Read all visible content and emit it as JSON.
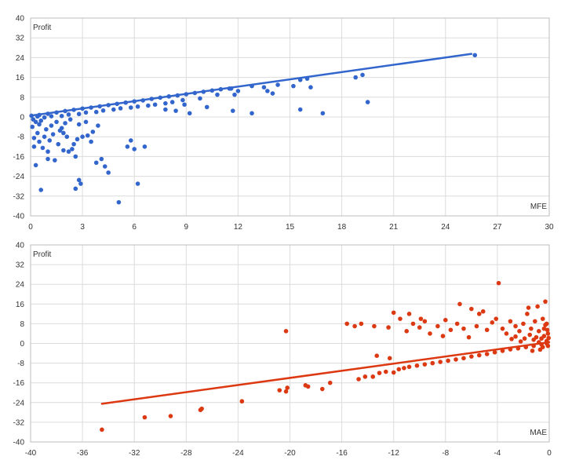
{
  "chart_data": [
    {
      "type": "scatter",
      "ylabel": "Profit",
      "xlabel": "MFE",
      "xlim": [
        0,
        30
      ],
      "ylim": [
        -40,
        40
      ],
      "x_ticks": [
        0,
        3,
        6,
        9,
        12,
        15,
        18,
        21,
        24,
        27,
        30
      ],
      "y_ticks": [
        40,
        32,
        24,
        16,
        8,
        0,
        -8,
        -16,
        -24,
        -32,
        -40
      ],
      "grid": true,
      "color": "#3366cc",
      "trendline": {
        "from": [
          0,
          0.5
        ],
        "to": [
          25.5,
          25.5
        ]
      },
      "points": [
        [
          0.3,
          -19.5
        ],
        [
          0.6,
          -29.5
        ],
        [
          1.0,
          -17
        ],
        [
          1.4,
          -17.5
        ],
        [
          2.6,
          -29
        ],
        [
          2.9,
          -27
        ],
        [
          2.8,
          -25.5
        ],
        [
          3.8,
          -18.5
        ],
        [
          4.1,
          -17
        ],
        [
          4.3,
          -20
        ],
        [
          4.5,
          -22.5
        ],
        [
          5.1,
          -34.5
        ],
        [
          5.6,
          -12
        ],
        [
          5.8,
          -9.5
        ],
        [
          6.0,
          -13
        ],
        [
          6.2,
          -27
        ],
        [
          6.6,
          -12
        ],
        [
          0.2,
          -12
        ],
        [
          0.5,
          -10
        ],
        [
          0.8,
          -8
        ],
        [
          1.1,
          -9.5
        ],
        [
          1.3,
          -7
        ],
        [
          1.6,
          -11
        ],
        [
          1.9,
          -6.5
        ],
        [
          2.2,
          -14
        ],
        [
          2.4,
          -13
        ],
        [
          2.5,
          -11
        ],
        [
          2.7,
          -9
        ],
        [
          3.0,
          -8
        ],
        [
          3.3,
          -7.5
        ],
        [
          3.6,
          -6
        ],
        [
          3.9,
          -3.5
        ],
        [
          2.0,
          -2.5
        ],
        [
          1.2,
          -3.5
        ],
        [
          0.9,
          -5
        ],
        [
          0.4,
          -6.5
        ],
        [
          0.1,
          -4
        ],
        [
          0.3,
          -2
        ],
        [
          0.6,
          -1.5
        ],
        [
          1.5,
          -2
        ],
        [
          1.8,
          -4.5
        ],
        [
          2.3,
          -1
        ],
        [
          2.8,
          -3
        ],
        [
          3.2,
          -2
        ],
        [
          0.2,
          -8.5
        ],
        [
          0.7,
          -12.5
        ],
        [
          1.0,
          -14
        ],
        [
          0.5,
          -3
        ],
        [
          0.15,
          -1
        ],
        [
          0.05,
          0.5
        ],
        [
          0.4,
          0.2
        ],
        [
          1.7,
          -5.5
        ],
        [
          2.1,
          -8
        ],
        [
          3.5,
          -10
        ],
        [
          2.6,
          -16
        ],
        [
          1.9,
          -13.5
        ],
        [
          0.5,
          0.8
        ],
        [
          1.0,
          1.3
        ],
        [
          1.5,
          1.8
        ],
        [
          2.0,
          2.4
        ],
        [
          2.5,
          2.9
        ],
        [
          3.0,
          3.4
        ],
        [
          3.5,
          3.8
        ],
        [
          4.0,
          4.3
        ],
        [
          4.5,
          4.8
        ],
        [
          5.0,
          5.3
        ],
        [
          5.5,
          5.8
        ],
        [
          6.0,
          6.3
        ],
        [
          6.5,
          6.7
        ],
        [
          7.0,
          7.3
        ],
        [
          7.5,
          7.8
        ],
        [
          8.0,
          8.3
        ],
        [
          8.5,
          8.7
        ],
        [
          9.0,
          9.2
        ],
        [
          9.5,
          9.7
        ],
        [
          10.0,
          10.2
        ],
        [
          10.5,
          10.7
        ],
        [
          11.0,
          11.2
        ],
        [
          11.5,
          11.5
        ],
        [
          1.2,
          0.3
        ],
        [
          2.2,
          1.0
        ],
        [
          3.2,
          1.8
        ],
        [
          4.2,
          2.6
        ],
        [
          5.2,
          3.5
        ],
        [
          6.2,
          4.2
        ],
        [
          7.2,
          5.0
        ],
        [
          8.2,
          6.0
        ],
        [
          0.8,
          -0.2
        ],
        [
          1.8,
          0.4
        ],
        [
          2.8,
          1.2
        ],
        [
          3.8,
          2.0
        ],
        [
          4.8,
          3.0
        ],
        [
          5.8,
          3.8
        ],
        [
          6.8,
          4.6
        ],
        [
          7.8,
          5.5
        ],
        [
          8.8,
          6.8
        ],
        [
          9.8,
          7.5
        ],
        [
          10.8,
          9.0
        ],
        [
          11.6,
          11.5
        ],
        [
          12.0,
          10.5
        ],
        [
          12.8,
          12.5
        ],
        [
          13.5,
          12.0
        ],
        [
          13.7,
          10.5
        ],
        [
          14.0,
          9.5
        ],
        [
          14.3,
          13.0
        ],
        [
          15.2,
          12.5
        ],
        [
          15.6,
          15.0
        ],
        [
          16.0,
          15.5
        ],
        [
          16.2,
          12.0
        ],
        [
          18.8,
          16.0
        ],
        [
          19.2,
          17.0
        ],
        [
          11.8,
          9.0
        ],
        [
          11.7,
          2.5
        ],
        [
          12.8,
          1.5
        ],
        [
          15.6,
          3.0
        ],
        [
          16.9,
          1.5
        ],
        [
          19.5,
          6.0
        ],
        [
          25.7,
          25.0
        ],
        [
          9.2,
          1.5
        ],
        [
          10.2,
          4.0
        ],
        [
          8.9,
          5.0
        ],
        [
          7.8,
          3.0
        ],
        [
          8.4,
          2.5
        ]
      ]
    },
    {
      "type": "scatter",
      "ylabel": "Profit",
      "xlabel": "MAE",
      "xlim": [
        -40,
        0
      ],
      "ylim": [
        -40,
        40
      ],
      "x_ticks": [
        -40,
        -36,
        -32,
        -28,
        -24,
        -20,
        -16,
        -12,
        -8,
        -4,
        0
      ],
      "y_ticks": [
        40,
        32,
        24,
        16,
        8,
        0,
        -8,
        -16,
        -24,
        -32,
        -40
      ],
      "grid": true,
      "color": "#dc3912",
      "trendline": {
        "from": [
          -34.5,
          -24.5
        ],
        "to": [
          0,
          0.5
        ]
      },
      "points": [
        [
          -34.5,
          -35
        ],
        [
          -31.2,
          -30
        ],
        [
          -29.2,
          -29.5
        ],
        [
          -26.9,
          -27
        ],
        [
          -26.8,
          -26.5
        ],
        [
          -23.7,
          -23.5
        ],
        [
          -20.8,
          -19
        ],
        [
          -20.3,
          -19.5
        ],
        [
          -20.2,
          -18
        ],
        [
          -20.3,
          5
        ],
        [
          -18.8,
          -17
        ],
        [
          -18.6,
          -17.5
        ],
        [
          -17.5,
          -18.5
        ],
        [
          -16.9,
          -16
        ],
        [
          -14.7,
          -14.5
        ],
        [
          -14.2,
          -13.5
        ],
        [
          -13.6,
          -13.5
        ],
        [
          -13.1,
          -12
        ],
        [
          -12.6,
          -11.5
        ],
        [
          -12.0,
          -11.8
        ],
        [
          -11.6,
          -10.5
        ],
        [
          -11.2,
          -10
        ],
        [
          -10.8,
          -9.5
        ],
        [
          -10.2,
          -9
        ],
        [
          -9.6,
          -8.5
        ],
        [
          -9.0,
          -8
        ],
        [
          -8.4,
          -7.5
        ],
        [
          -7.8,
          -7
        ],
        [
          -7.2,
          -6.5
        ],
        [
          -6.6,
          -6
        ],
        [
          -6.0,
          -5.3
        ],
        [
          -5.4,
          -4.8
        ],
        [
          -4.8,
          -4.3
        ],
        [
          -4.2,
          -3.6
        ],
        [
          -3.6,
          -3
        ],
        [
          -3.0,
          -2.4
        ],
        [
          -2.4,
          -2
        ],
        [
          -1.8,
          -1.5
        ],
        [
          -1.2,
          -1
        ],
        [
          -0.6,
          -0.4
        ],
        [
          -14.5,
          8
        ],
        [
          -13.5,
          7
        ],
        [
          -12.4,
          6.5
        ],
        [
          -12.0,
          12.5
        ],
        [
          -11.5,
          10
        ],
        [
          -11.0,
          5
        ],
        [
          -10.5,
          8
        ],
        [
          -10.0,
          6.5
        ],
        [
          -9.6,
          9
        ],
        [
          -9.2,
          4
        ],
        [
          -8.6,
          7
        ],
        [
          -8.2,
          3
        ],
        [
          -8.0,
          9.5
        ],
        [
          -7.6,
          5.5
        ],
        [
          -7.1,
          8
        ],
        [
          -6.6,
          6
        ],
        [
          -6.2,
          2.5
        ],
        [
          -5.6,
          7
        ],
        [
          -5.4,
          12
        ],
        [
          -4.8,
          5.5
        ],
        [
          -4.4,
          8.5
        ],
        [
          -4.1,
          10
        ],
        [
          -3.6,
          6
        ],
        [
          -3.3,
          4
        ],
        [
          -3.0,
          9
        ],
        [
          -2.6,
          7
        ],
        [
          -2.3,
          5
        ],
        [
          -2.0,
          8
        ],
        [
          -1.7,
          12
        ],
        [
          -1.4,
          6
        ],
        [
          -1.1,
          9
        ],
        [
          -0.8,
          5
        ],
        [
          -0.5,
          10
        ],
        [
          -0.3,
          7.5
        ],
        [
          -0.1,
          4
        ],
        [
          -0.3,
          17
        ],
        [
          -0.9,
          15
        ],
        [
          -1.6,
          14.5
        ],
        [
          -3.9,
          24.5
        ],
        [
          -5.1,
          13
        ],
        [
          -6.0,
          14
        ],
        [
          -6.9,
          16
        ],
        [
          -9.9,
          10
        ],
        [
          -10.8,
          12
        ],
        [
          -12.3,
          -6
        ],
        [
          -13.3,
          -5
        ],
        [
          -15.6,
          8
        ],
        [
          -15.0,
          7
        ],
        [
          -0.2,
          1
        ],
        [
          -0.4,
          3
        ],
        [
          -0.6,
          2
        ],
        [
          -0.8,
          0.5
        ],
        [
          -1.0,
          2.5
        ],
        [
          -1.2,
          1.5
        ],
        [
          -1.5,
          3.5
        ],
        [
          -1.9,
          2
        ],
        [
          -2.2,
          0.8
        ],
        [
          -2.6,
          2.8
        ],
        [
          -2.9,
          1.8
        ],
        [
          -0.1,
          -1
        ],
        [
          -0.2,
          0
        ],
        [
          -0.5,
          -1.5
        ],
        [
          -0.7,
          -2.5
        ],
        [
          -1.3,
          -3
        ],
        [
          -0.15,
          5.5
        ],
        [
          -0.05,
          2.2
        ],
        [
          -0.4,
          6
        ],
        [
          -0.2,
          8
        ]
      ]
    }
  ]
}
